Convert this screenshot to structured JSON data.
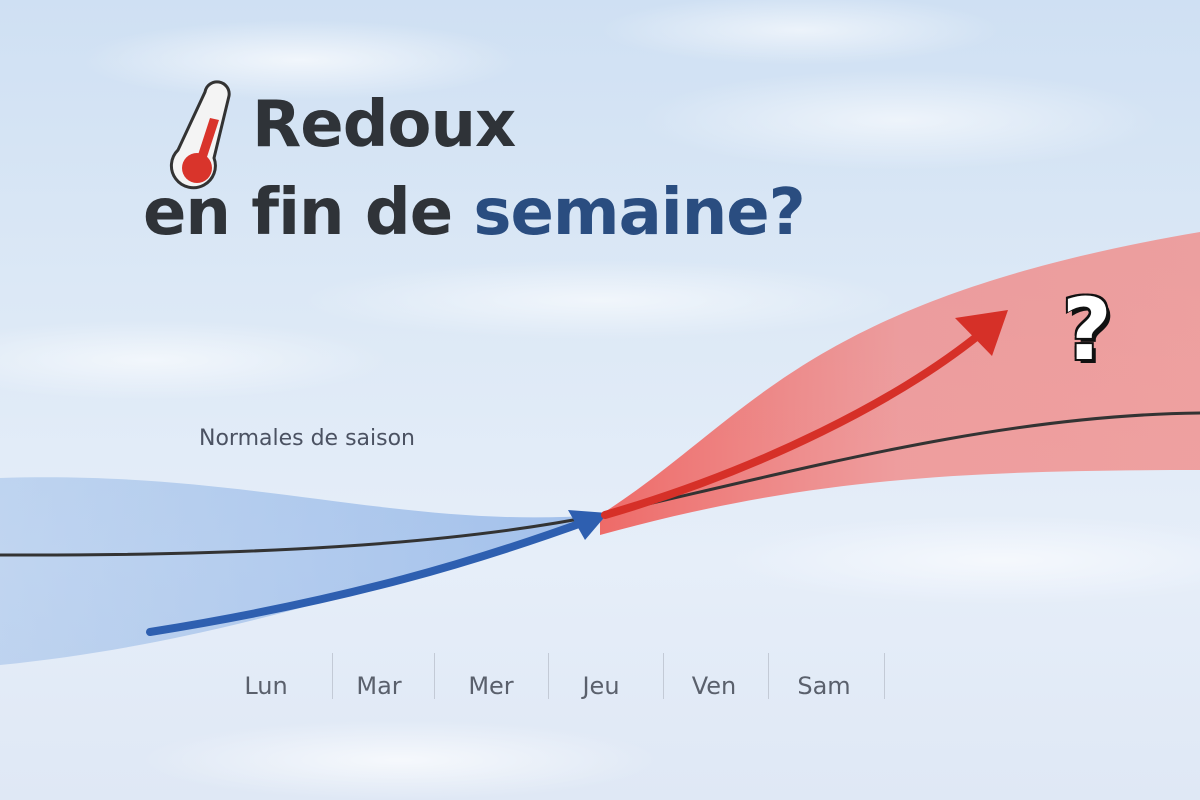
{
  "headline": {
    "line1": "Redoux",
    "line2_plain": "en fin de ",
    "line2_accent": "semaine?"
  },
  "normals_label": "Normales de saison",
  "days": [
    "Lun",
    "Mar",
    "Mer",
    "Jeu",
    "Ven",
    "Sam"
  ],
  "question_mark": "?",
  "icons": {
    "thermometer": "thermometer-icon",
    "trend_up": "red-arrow-up",
    "trend_in": "blue-arrow"
  },
  "colors": {
    "title": "#2f3338",
    "accent": "#2a4d80",
    "warm": "#e23a2e",
    "cold": "#2e5fb0",
    "normal_line": "#333333"
  }
}
